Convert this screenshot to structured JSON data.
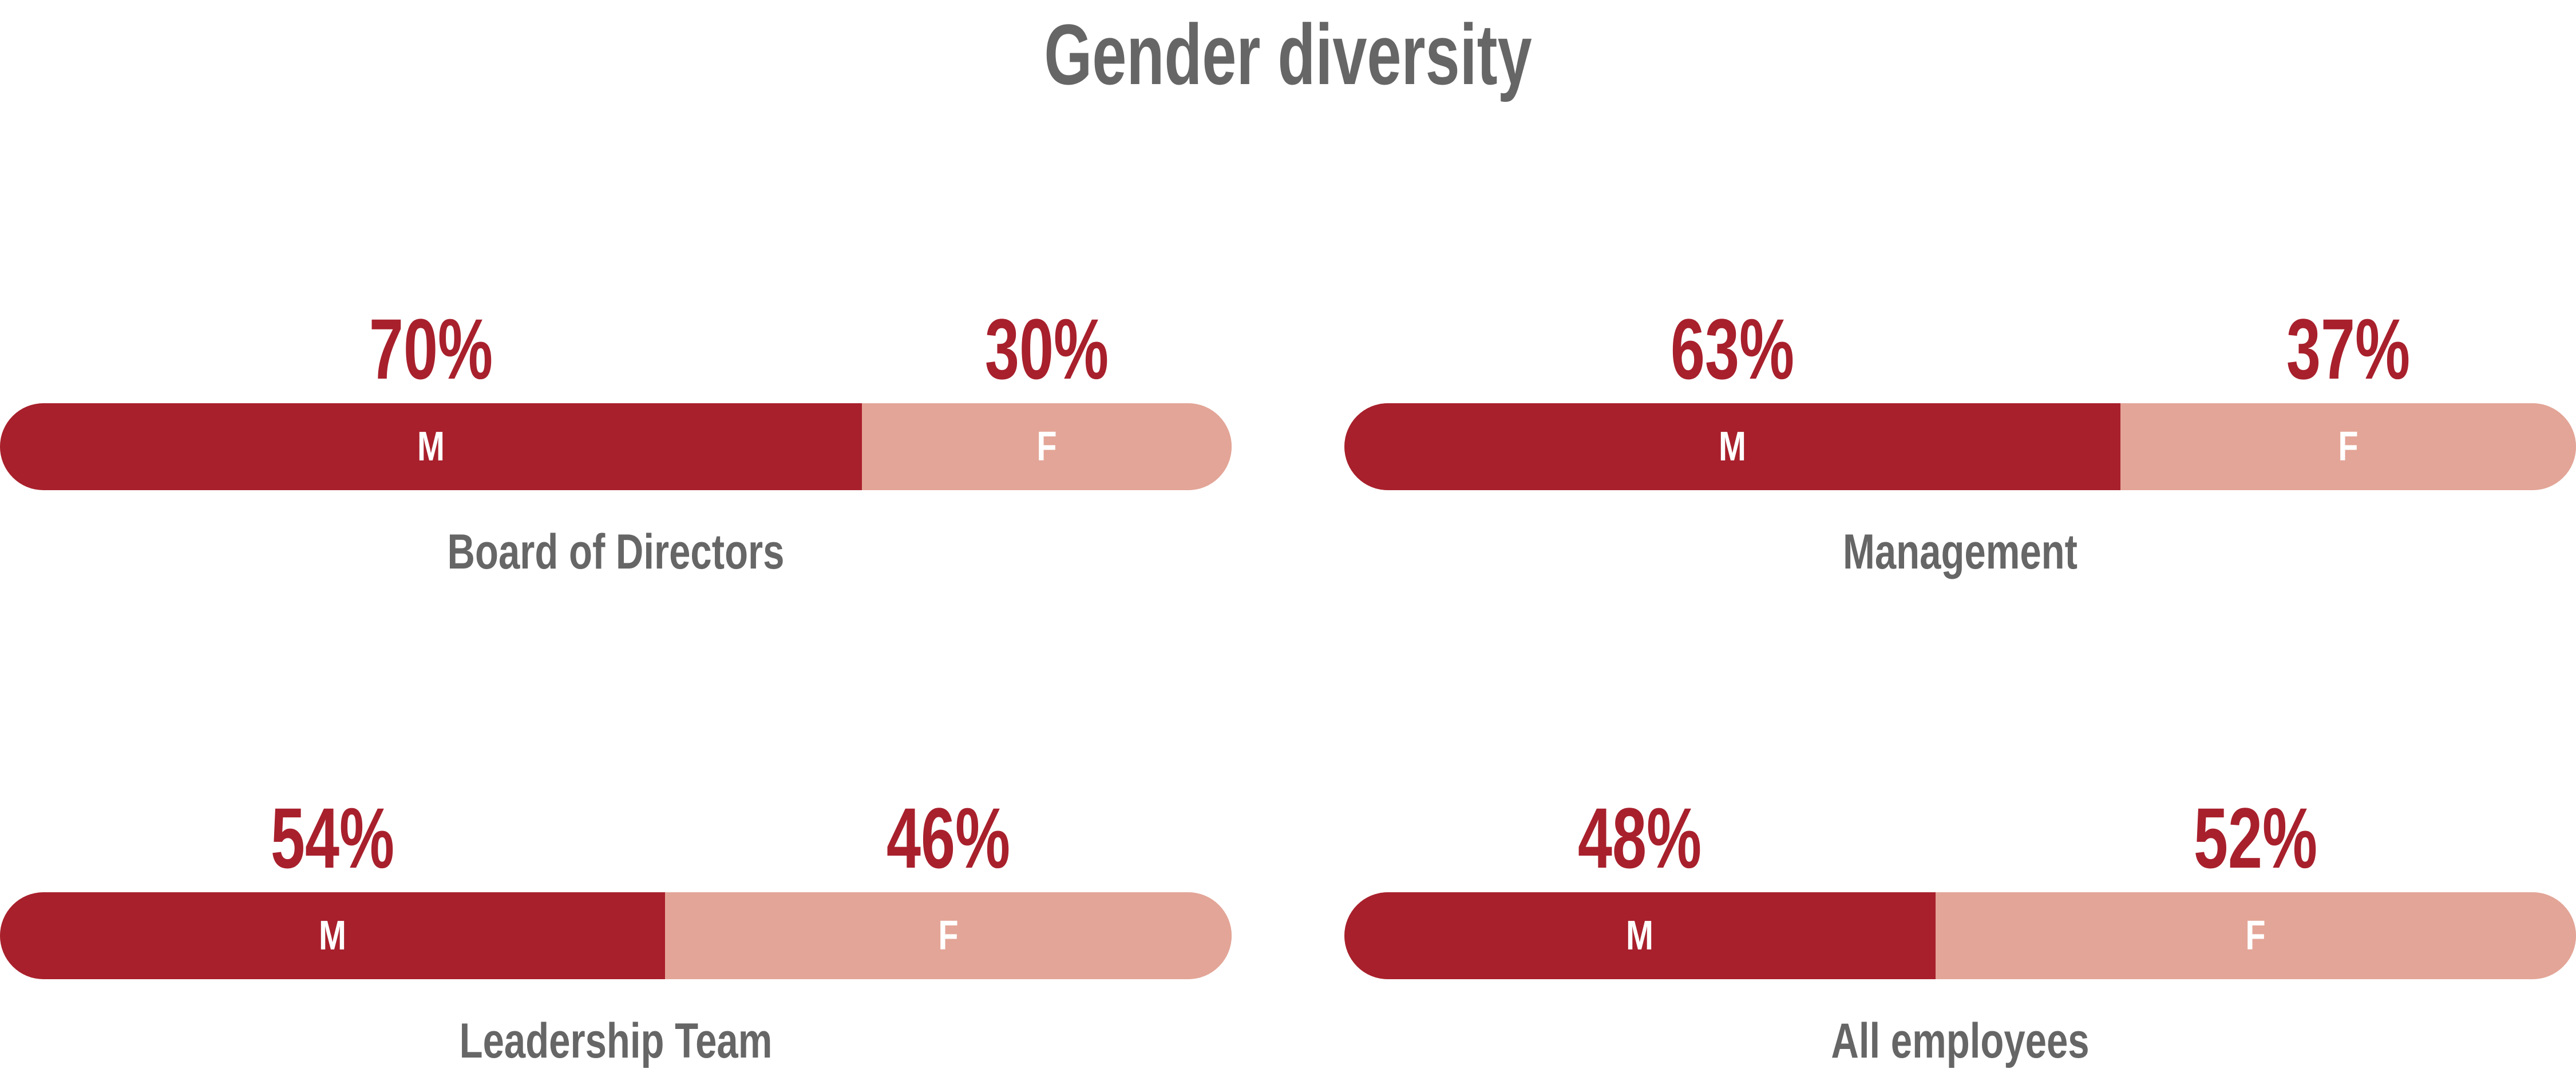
{
  "chart_data": {
    "type": "bar",
    "title": "Gender diversity",
    "stacked": true,
    "percent_suffix": "%",
    "colors": {
      "M": "#a8202c",
      "F": "#e3a597"
    },
    "series": [
      {
        "name": "M",
        "label": "M"
      },
      {
        "name": "F",
        "label": "F"
      }
    ],
    "groups": [
      {
        "category": "Board of Directors",
        "M": 70,
        "F": 30,
        "M_text": "70%",
        "F_text": "30%"
      },
      {
        "category": "Management",
        "M": 63,
        "F": 37,
        "M_text": "63%",
        "F_text": "37%"
      },
      {
        "category": "Leadership Team",
        "M": 54,
        "F": 46,
        "M_text": "54%",
        "F_text": "46%"
      },
      {
        "category": "All employees",
        "M": 48,
        "F": 52,
        "M_text": "48%",
        "F_text": "52%"
      }
    ]
  }
}
